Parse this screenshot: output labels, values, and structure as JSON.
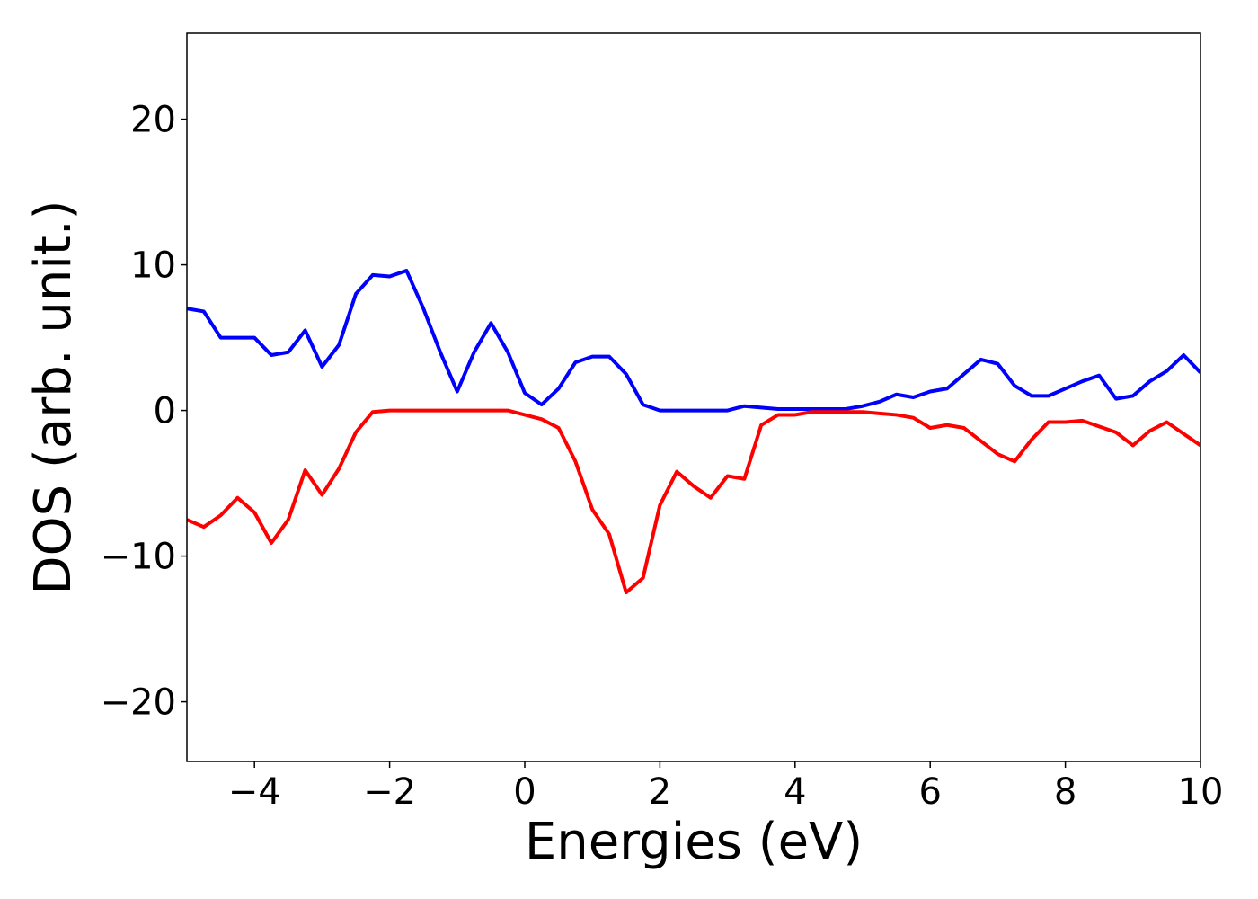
{
  "chart_data": {
    "type": "line",
    "xlabel": "Energies (eV)",
    "ylabel": "DOS (arb. unit.)",
    "x": [
      -5,
      -4.75,
      -4.5,
      -4.25,
      -4,
      -3.75,
      -3.5,
      -3.25,
      -3,
      -2.75,
      -2.5,
      -2.25,
      -2,
      -1.75,
      -1.5,
      -1.25,
      -1,
      -0.75,
      -0.5,
      -0.25,
      0,
      0.25,
      0.5,
      0.75,
      1,
      1.25,
      1.5,
      1.75,
      2,
      2.25,
      2.5,
      2.75,
      3,
      3.25,
      3.5,
      3.75,
      4,
      4.25,
      4.5,
      4.75,
      5,
      5.25,
      5.5,
      5.75,
      6,
      6.25,
      6.5,
      6.75,
      7,
      7.25,
      7.5,
      7.75,
      8,
      8.25,
      8.5,
      8.75,
      9,
      9.25,
      9.5,
      9.75,
      10
    ],
    "series": [
      {
        "color": "#0000ff",
        "values": [
          7.0,
          6.8,
          5.0,
          5.0,
          5.0,
          3.8,
          4.0,
          5.5,
          3.0,
          4.5,
          8.0,
          9.3,
          9.2,
          9.6,
          7.0,
          4.0,
          1.3,
          4.0,
          6.0,
          4.0,
          1.2,
          0.4,
          1.5,
          3.3,
          3.7,
          3.7,
          2.5,
          0.4,
          0.0,
          0.0,
          0.0,
          0.0,
          0.0,
          0.3,
          0.2,
          0.1,
          0.1,
          0.1,
          0.1,
          0.1,
          0.3,
          0.6,
          1.1,
          0.9,
          1.3,
          1.5,
          2.5,
          3.5,
          3.2,
          1.7,
          1.0,
          1.0,
          1.5,
          2.0,
          2.4,
          0.8,
          1.0,
          2.0,
          2.7,
          3.8,
          2.6
        ]
      },
      {
        "color": "#ff0000",
        "values": [
          -7.5,
          -8.0,
          -7.2,
          -6.0,
          -7.0,
          -9.1,
          -7.5,
          -4.1,
          -5.8,
          -4.0,
          -1.5,
          -0.1,
          0.0,
          0.0,
          0.0,
          0.0,
          0.0,
          0.0,
          0.0,
          0.0,
          -0.3,
          -0.6,
          -1.2,
          -3.5,
          -6.8,
          -8.5,
          -12.5,
          -11.5,
          -6.5,
          -4.2,
          -5.2,
          -6.0,
          -4.5,
          -4.7,
          -1.0,
          -0.3,
          -0.3,
          -0.1,
          -0.1,
          -0.1,
          -0.1,
          -0.2,
          -0.3,
          -0.5,
          -1.2,
          -1.0,
          -1.2,
          -2.1,
          -3.0,
          -3.5,
          -2.0,
          -0.8,
          -0.8,
          -0.7,
          -1.1,
          -1.5,
          -2.4,
          -1.4,
          -0.8,
          -1.6,
          -2.4
        ]
      }
    ],
    "xlim": [
      -5,
      10
    ],
    "xticks": [
      {
        "value": -4,
        "label": "−4"
      },
      {
        "value": -2,
        "label": "−2"
      },
      0,
      2,
      4,
      6,
      8,
      10
    ],
    "ylim": [
      -24.1,
      25.9
    ],
    "yticks": [
      {
        "value": -20,
        "label": "−20"
      },
      {
        "value": -10,
        "label": "−10"
      },
      0,
      10,
      20
    ]
  }
}
